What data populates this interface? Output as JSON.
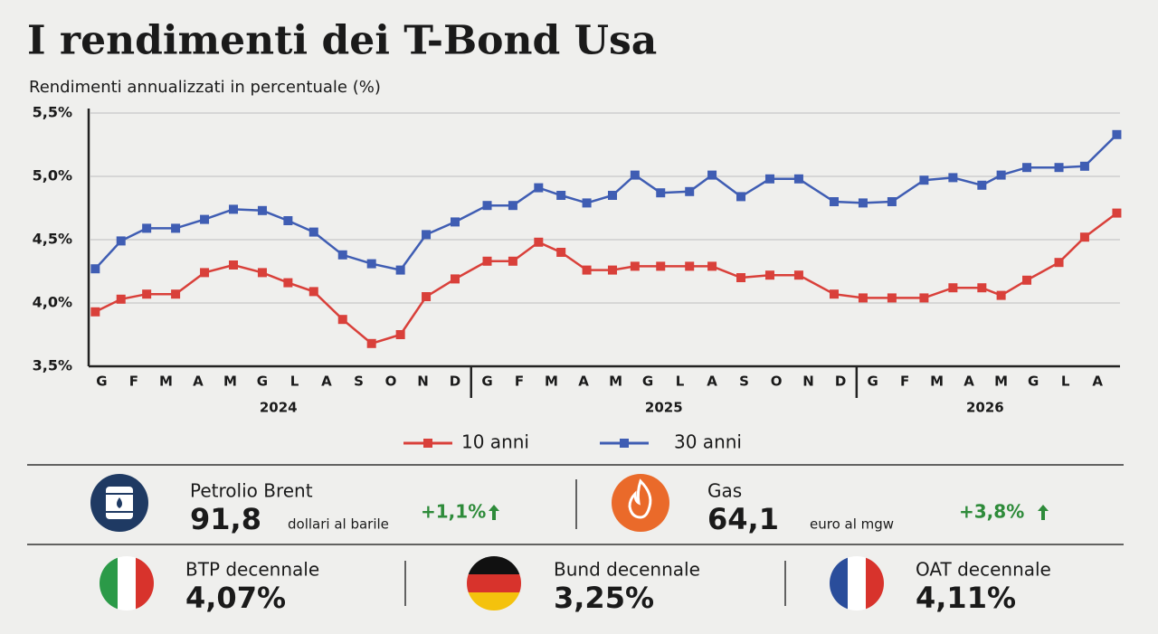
{
  "chart_data": {
    "type": "line",
    "title": "I rendimenti dei T-Bond Usa",
    "subtitle": "Rendimenti annualizzati in percentuale (%)",
    "x": [
      -0.2,
      0.6,
      1.4,
      2.3,
      3.2,
      4.1,
      5.0,
      5.8,
      6.6,
      7.5,
      8.4,
      9.3,
      10.1,
      11.0,
      12.0,
      12.8,
      13.6,
      14.3,
      15.1,
      15.9,
      16.6,
      17.4,
      18.3,
      19.0,
      19.9,
      20.8,
      21.7,
      22.8,
      23.7,
      24.6,
      25.6,
      26.5,
      27.4,
      28.0,
      28.8,
      29.8,
      30.6,
      31.6
    ],
    "series": [
      {
        "name": "10 anni",
        "color": "#d9403a",
        "values": [
          3.93,
          4.03,
          4.07,
          4.07,
          4.24,
          4.3,
          4.24,
          4.16,
          4.09,
          3.87,
          3.68,
          3.75,
          4.05,
          4.19,
          4.33,
          4.33,
          4.48,
          4.4,
          4.26,
          4.26,
          4.29,
          4.29,
          4.29,
          4.29,
          4.2,
          4.22,
          4.22,
          4.07,
          4.04,
          4.04,
          4.04,
          4.12,
          4.12,
          4.06,
          4.18,
          4.32,
          4.52,
          4.71
        ]
      },
      {
        "name": "30 anni",
        "color": "#3f5db3",
        "values": [
          4.27,
          4.49,
          4.59,
          4.59,
          4.66,
          4.74,
          4.73,
          4.65,
          4.56,
          4.38,
          4.31,
          4.26,
          4.54,
          4.64,
          4.77,
          4.77,
          4.91,
          4.85,
          4.79,
          4.85,
          5.01,
          4.87,
          4.88,
          5.01,
          4.84,
          4.98,
          4.98,
          4.8,
          4.79,
          4.8,
          4.97,
          4.99,
          4.93,
          5.01,
          5.07,
          5.07,
          5.08,
          5.33
        ]
      }
    ],
    "xlim": [
      -0.35,
      31.7
    ],
    "xticks": [
      {
        "value": 0,
        "label": "G"
      },
      {
        "value": 1,
        "label": "F"
      },
      {
        "value": 2,
        "label": "M"
      },
      {
        "value": 3,
        "label": "A"
      },
      {
        "value": 4,
        "label": "M"
      },
      {
        "value": 5,
        "label": "G"
      },
      {
        "value": 6,
        "label": "L"
      },
      {
        "value": 7,
        "label": "A"
      },
      {
        "value": 8,
        "label": "S"
      },
      {
        "value": 9,
        "label": "O"
      },
      {
        "value": 10,
        "label": "N"
      },
      {
        "value": 11,
        "label": "D"
      },
      {
        "value": 12,
        "label": "G"
      },
      {
        "value": 13,
        "label": "F"
      },
      {
        "value": 14,
        "label": "M"
      },
      {
        "value": 15,
        "label": "A"
      },
      {
        "value": 16,
        "label": "M"
      },
      {
        "value": 17,
        "label": "G"
      },
      {
        "value": 18,
        "label": "L"
      },
      {
        "value": 19,
        "label": "A"
      },
      {
        "value": 20,
        "label": "S"
      },
      {
        "value": 21,
        "label": "O"
      },
      {
        "value": 22,
        "label": "N"
      },
      {
        "value": 23,
        "label": "D"
      },
      {
        "value": 24,
        "label": "G"
      },
      {
        "value": 25,
        "label": "F"
      },
      {
        "value": 26,
        "label": "M"
      },
      {
        "value": 27,
        "label": "A"
      },
      {
        "value": 28,
        "label": "M"
      },
      {
        "value": 29,
        "label": "G"
      },
      {
        "value": 30,
        "label": "L"
      },
      {
        "value": 31,
        "label": "A"
      }
    ],
    "x_groups": [
      {
        "label": "2024",
        "range": [
          0,
          11
        ]
      },
      {
        "label": "2025",
        "range": [
          12,
          23
        ]
      },
      {
        "label": "2026",
        "range": [
          24,
          31
        ]
      }
    ],
    "ylim": [
      3.5,
      5.5
    ],
    "yticks": [
      {
        "value": 3.5,
        "label": "3,5%"
      },
      {
        "value": 4.0,
        "label": "4,0%"
      },
      {
        "value": 4.5,
        "label": "4,5%"
      },
      {
        "value": 5.0,
        "label": "5,0%"
      },
      {
        "value": 5.5,
        "label": "5,5%"
      }
    ],
    "grid": true
  },
  "commodities": [
    {
      "name": "Petrolio Brent",
      "value": "91,8",
      "unit": "dollari al barile",
      "change": "+1,1%"
    },
    {
      "name": "Gas",
      "value": "64,1",
      "unit": "euro al mgw",
      "change": "+3,8%"
    }
  ],
  "bonds": [
    {
      "name": "BTP decennale",
      "value": "4,07%"
    },
    {
      "name": "Bund decennale",
      "value": "3,25%"
    },
    {
      "name": "OAT decennale",
      "value": "4,11%"
    }
  ]
}
